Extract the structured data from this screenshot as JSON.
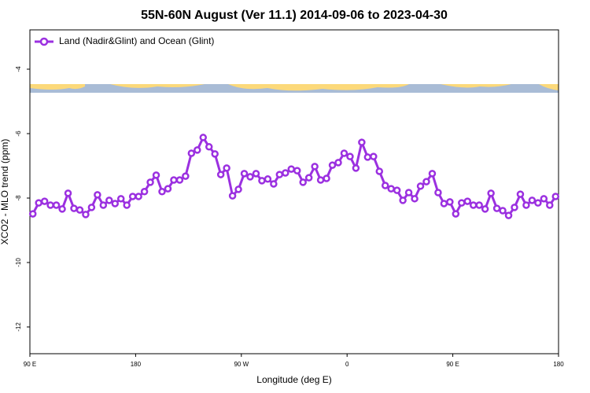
{
  "chart_data": {
    "type": "line",
    "title": "55N-60N August (Ver 11.1)   2014-09-06 to 2023-04-30",
    "xlabel": "Longitude (deg E)",
    "ylabel": "XCO2 - MLO trend (ppm)",
    "xlim": [
      90,
      540
    ],
    "ylim": [
      -12.83,
      -2.78
    ],
    "xticks": [
      {
        "value": 90,
        "label": "90 E"
      },
      {
        "value": 180,
        "label": "180"
      },
      {
        "value": 270,
        "label": "90 W"
      },
      {
        "value": 360,
        "label": "0"
      },
      {
        "value": 450,
        "label": "90 E"
      },
      {
        "value": 540,
        "label": "180"
      }
    ],
    "yticks": [
      -12,
      -10,
      -8,
      -6,
      -4
    ],
    "legend": "top-left",
    "x": [
      92.5,
      97.5,
      102.5,
      107.5,
      112.5,
      117.5,
      122.5,
      127.5,
      132.5,
      137.5,
      142.5,
      147.5,
      152.5,
      157.5,
      162.5,
      167.5,
      172.5,
      177.5,
      182.5,
      187.5,
      192.5,
      197.5,
      202.5,
      207.5,
      212.5,
      217.5,
      222.5,
      227.5,
      232.5,
      237.5,
      242.5,
      247.5,
      252.5,
      257.5,
      262.5,
      267.5,
      272.5,
      277.5,
      282.5,
      287.5,
      292.5,
      297.5,
      302.5,
      307.5,
      312.5,
      317.5,
      322.5,
      327.5,
      332.5,
      337.5,
      342.5,
      347.5,
      352.5,
      357.5,
      362.5,
      367.5,
      372.5,
      377.5,
      382.5,
      387.5,
      392.5,
      397.5,
      402.5,
      407.5,
      412.5,
      417.5,
      422.5,
      427.5,
      432.5,
      437.5,
      442.5,
      447.5,
      452.5,
      457.5,
      462.5,
      467.5,
      472.5,
      477.5,
      482.5,
      487.5,
      492.5,
      497.5,
      502.5,
      507.5,
      512.5,
      517.5,
      522.5,
      527.5,
      532.5,
      537.5
    ],
    "series": [
      {
        "name": "Land (Nadir&Glint) and Ocean (Glint)",
        "color": "#9b30e0",
        "values": [
          -8.49,
          -8.15,
          -8.1,
          -8.22,
          -8.22,
          -8.34,
          -7.85,
          -8.32,
          -8.37,
          -8.51,
          -8.29,
          -7.9,
          -8.22,
          -8.07,
          -8.17,
          -8.02,
          -8.22,
          -7.95,
          -7.95,
          -7.8,
          -7.51,
          -7.29,
          -7.8,
          -7.71,
          -7.44,
          -7.44,
          -7.32,
          -6.61,
          -6.51,
          -6.12,
          -6.41,
          -6.63,
          -7.27,
          -7.07,
          -7.93,
          -7.73,
          -7.24,
          -7.34,
          -7.24,
          -7.46,
          -7.41,
          -7.56,
          -7.27,
          -7.22,
          -7.1,
          -7.15,
          -7.51,
          -7.37,
          -7.02,
          -7.44,
          -7.39,
          -6.98,
          -6.9,
          -6.61,
          -6.71,
          -7.07,
          -6.27,
          -6.73,
          -6.71,
          -7.17,
          -7.61,
          -7.71,
          -7.76,
          -8.07,
          -7.83,
          -8.02,
          -7.63,
          -7.49,
          -7.24,
          -7.83,
          -8.17,
          -8.12,
          -8.49,
          -8.15,
          -8.1,
          -8.22,
          -8.22,
          -8.34,
          -7.85,
          -8.32,
          -8.39,
          -8.54,
          -8.29,
          -7.88,
          -8.22,
          -8.07,
          -8.15,
          -8.02,
          -8.22,
          -7.95
        ]
      }
    ]
  }
}
